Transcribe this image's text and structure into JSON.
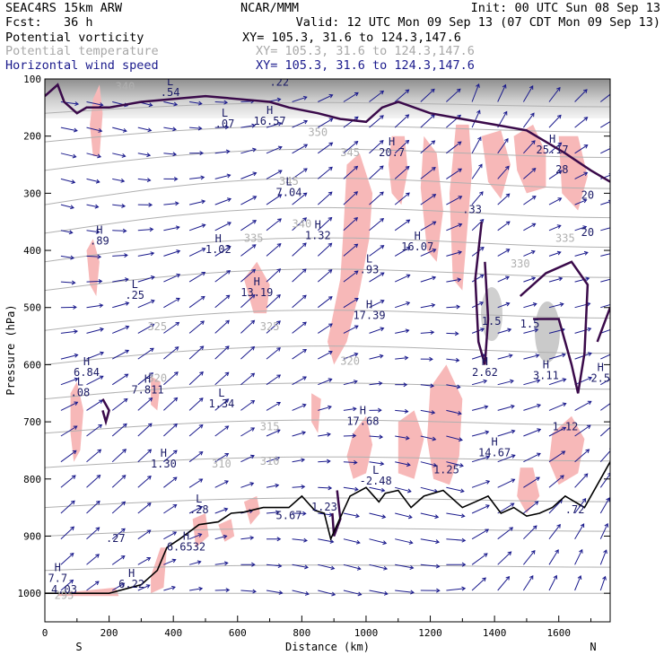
{
  "header": {
    "line1_left": "SEAC4RS 15km ARW",
    "line1_center": "NCAR/MMM",
    "line1_right": "Init: 00 UTC Sun 08 Sep 13",
    "line2_left": "Fcst:   36 h",
    "line2_right": "Valid: 12 UTC Mon 09 Sep 13 (07 CDT Mon 09 Sep 13)",
    "fields": [
      {
        "name": "Potential vorticity",
        "xy": "XY= 105.3, 31.6 to 124.3,147.6",
        "color": "#000000"
      },
      {
        "name": "Potential temperature",
        "xy": "XY= 105.3, 31.6 to 124.3,147.6",
        "color": "#a8a8a8"
      },
      {
        "name": "Horizontal wind speed",
        "xy": "XY= 105.3, 31.6 to 124.3,147.6",
        "color": "#1a1a8c"
      }
    ]
  },
  "chart_data": {
    "type": "cross-section",
    "xlabel": "Distance (km)",
    "ylabel": "Pressure (hPa)",
    "xlim": [
      0,
      1760
    ],
    "ylim": [
      1050,
      100
    ],
    "x_ticks": [
      0,
      200,
      400,
      600,
      800,
      1000,
      1200,
      1400,
      1600
    ],
    "y_ticks": [
      100,
      200,
      300,
      400,
      500,
      600,
      700,
      800,
      900,
      1000
    ],
    "endpoint_left": "S",
    "endpoint_right": "N",
    "colors": {
      "pv_shade": "#f7b8b8",
      "terrain": "#000000",
      "theta": "#b0b0b0",
      "wind": "#1a1a8c",
      "pv_contour": "#3a0a4a"
    },
    "terrain": [
      [
        0,
        1000
      ],
      [
        100,
        1000
      ],
      [
        200,
        1000
      ],
      [
        300,
        985
      ],
      [
        350,
        960
      ],
      [
        380,
        920
      ],
      [
        420,
        905
      ],
      [
        480,
        880
      ],
      [
        540,
        875
      ],
      [
        580,
        860
      ],
      [
        620,
        858
      ],
      [
        680,
        850
      ],
      [
        720,
        850
      ],
      [
        760,
        850
      ],
      [
        800,
        830
      ],
      [
        840,
        855
      ],
      [
        870,
        860
      ],
      [
        890,
        905
      ],
      [
        910,
        880
      ],
      [
        950,
        830
      ],
      [
        1000,
        815
      ],
      [
        1040,
        840
      ],
      [
        1060,
        825
      ],
      [
        1100,
        820
      ],
      [
        1140,
        850
      ],
      [
        1180,
        830
      ],
      [
        1240,
        820
      ],
      [
        1300,
        850
      ],
      [
        1340,
        840
      ],
      [
        1380,
        830
      ],
      [
        1420,
        860
      ],
      [
        1460,
        850
      ],
      [
        1500,
        865
      ],
      [
        1540,
        860
      ],
      [
        1580,
        850
      ],
      [
        1620,
        830
      ],
      [
        1680,
        850
      ],
      [
        1730,
        800
      ],
      [
        1760,
        770
      ]
    ],
    "theta_labels": [
      {
        "x": 250,
        "p": 120,
        "v": "340"
      },
      {
        "x": 850,
        "p": 200,
        "v": "350"
      },
      {
        "x": 950,
        "p": 235,
        "v": "345"
      },
      {
        "x": 760,
        "p": 285,
        "v": "345"
      },
      {
        "x": 800,
        "p": 360,
        "v": "340"
      },
      {
        "x": 650,
        "p": 385,
        "v": "335"
      },
      {
        "x": 1620,
        "p": 385,
        "v": "335"
      },
      {
        "x": 1480,
        "p": 430,
        "v": "330"
      },
      {
        "x": 350,
        "p": 540,
        "v": "325"
      },
      {
        "x": 700,
        "p": 540,
        "v": "325"
      },
      {
        "x": 950,
        "p": 600,
        "v": "320"
      },
      {
        "x": 350,
        "p": 630,
        "v": "320"
      },
      {
        "x": 700,
        "p": 715,
        "v": "315"
      },
      {
        "x": 550,
        "p": 780,
        "v": "310"
      },
      {
        "x": 700,
        "p": 775,
        "v": "310"
      },
      {
        "x": 60,
        "p": 1010,
        "v": "295"
      }
    ],
    "pv_extrema": [
      {
        "t": "L",
        "x": 390,
        "p": 130,
        "v": ".54"
      },
      {
        "t": "",
        "x": 730,
        "p": 112,
        "v": ".22"
      },
      {
        "t": "L",
        "x": 560,
        "p": 185,
        "v": ".07"
      },
      {
        "t": "H",
        "x": 700,
        "p": 180,
        "v": "16.57"
      },
      {
        "t": "H",
        "x": 1080,
        "p": 235,
        "v": "20.7"
      },
      {
        "t": "H",
        "x": 1580,
        "p": 230,
        "v": "25.17"
      },
      {
        "t": "",
        "x": 1610,
        "p": 265,
        "v": "28"
      },
      {
        "t": "",
        "x": 1690,
        "p": 310,
        "v": "20"
      },
      {
        "t": "",
        "x": 1690,
        "p": 375,
        "v": "20"
      },
      {
        "t": "L",
        "x": 760,
        "p": 305,
        "v": "7.04"
      },
      {
        "t": "H",
        "x": 850,
        "p": 380,
        "v": "1.32"
      },
      {
        "t": "H",
        "x": 170,
        "p": 390,
        "v": ".89"
      },
      {
        "t": "H",
        "x": 540,
        "p": 405,
        "v": "1.02"
      },
      {
        "t": "L",
        "x": 1010,
        "p": 440,
        "v": ".93"
      },
      {
        "t": "H",
        "x": 1160,
        "p": 400,
        "v": "16.07"
      },
      {
        "t": "",
        "x": 1330,
        "p": 335,
        "v": ".33"
      },
      {
        "t": "H",
        "x": 660,
        "p": 480,
        "v": "13.19"
      },
      {
        "t": "L",
        "x": 280,
        "p": 485,
        "v": ".25"
      },
      {
        "t": "H",
        "x": 1010,
        "p": 520,
        "v": "17.39"
      },
      {
        "t": "",
        "x": 1390,
        "p": 530,
        "v": "1.5"
      },
      {
        "t": "",
        "x": 1510,
        "p": 535,
        "v": "1.5"
      },
      {
        "t": "H",
        "x": 130,
        "p": 620,
        "v": "6.84"
      },
      {
        "t": "H",
        "x": 1370,
        "p": 620,
        "v": "2.62"
      },
      {
        "t": "H",
        "x": 1560,
        "p": 625,
        "v": "3.11"
      },
      {
        "t": "H",
        "x": 1730,
        "p": 630,
        "v": "2.5"
      },
      {
        "t": "L",
        "x": 110,
        "p": 655,
        "v": ".08"
      },
      {
        "t": "H",
        "x": 320,
        "p": 650,
        "v": "7.811"
      },
      {
        "t": "L",
        "x": 550,
        "p": 675,
        "v": "1.34"
      },
      {
        "t": "H",
        "x": 990,
        "p": 705,
        "v": "17.68"
      },
      {
        "t": "",
        "x": 1620,
        "p": 715,
        "v": "1.12"
      },
      {
        "t": "H",
        "x": 1400,
        "p": 760,
        "v": "14.67"
      },
      {
        "t": "H",
        "x": 370,
        "p": 780,
        "v": "1.30"
      },
      {
        "t": "",
        "x": 1250,
        "p": 790,
        "v": "1.25"
      },
      {
        "t": "L",
        "x": 1030,
        "p": 810,
        "v": "-2.48"
      },
      {
        "t": "",
        "x": 1650,
        "p": 860,
        "v": ".72"
      },
      {
        "t": "L",
        "x": 480,
        "p": 860,
        "v": ".28"
      },
      {
        "t": "",
        "x": 870,
        "p": 855,
        "v": "1.23"
      },
      {
        "t": "",
        "x": 760,
        "p": 870,
        "v": "5.67"
      },
      {
        "t": "",
        "x": 220,
        "p": 910,
        "v": ".27"
      },
      {
        "t": "H",
        "x": 440,
        "p": 925,
        "v": "6.6532"
      },
      {
        "t": "H",
        "x": 40,
        "p": 980,
        "v": "7.7"
      },
      {
        "t": "H",
        "x": 270,
        "p": 990,
        "v": "6.22"
      },
      {
        "t": "",
        "x": 60,
        "p": 1000,
        "v": "4.03"
      }
    ],
    "pv_shading": [
      [
        [
          150,
          135
        ],
        [
          170,
          110
        ],
        [
          180,
          160
        ],
        [
          170,
          235
        ],
        [
          150,
          235
        ],
        [
          140,
          180
        ]
      ],
      [
        [
          130,
          400
        ],
        [
          150,
          380
        ],
        [
          170,
          420
        ],
        [
          160,
          480
        ],
        [
          140,
          460
        ]
      ],
      [
        [
          620,
          450
        ],
        [
          660,
          420
        ],
        [
          700,
          460
        ],
        [
          690,
          510
        ],
        [
          650,
          510
        ]
      ],
      [
        [
          940,
          250
        ],
        [
          980,
          230
        ],
        [
          1020,
          300
        ],
        [
          1010,
          380
        ],
        [
          980,
          470
        ],
        [
          940,
          560
        ],
        [
          900,
          600
        ],
        [
          880,
          560
        ],
        [
          920,
          450
        ],
        [
          930,
          360
        ]
      ],
      [
        [
          1080,
          200
        ],
        [
          1120,
          200
        ],
        [
          1130,
          260
        ],
        [
          1110,
          320
        ],
        [
          1080,
          300
        ],
        [
          1070,
          250
        ]
      ],
      [
        [
          1180,
          200
        ],
        [
          1220,
          230
        ],
        [
          1240,
          330
        ],
        [
          1220,
          420
        ],
        [
          1190,
          400
        ],
        [
          1170,
          290
        ]
      ],
      [
        [
          1280,
          180
        ],
        [
          1320,
          180
        ],
        [
          1330,
          260
        ],
        [
          1300,
          470
        ],
        [
          1270,
          450
        ],
        [
          1260,
          300
        ]
      ],
      [
        [
          1360,
          200
        ],
        [
          1420,
          190
        ],
        [
          1450,
          250
        ],
        [
          1420,
          310
        ],
        [
          1380,
          280
        ]
      ],
      [
        [
          1460,
          200
        ],
        [
          1520,
          180
        ],
        [
          1560,
          230
        ],
        [
          1560,
          290
        ],
        [
          1500,
          300
        ],
        [
          1470,
          260
        ]
      ],
      [
        [
          1600,
          200
        ],
        [
          1660,
          200
        ],
        [
          1690,
          270
        ],
        [
          1660,
          330
        ],
        [
          1610,
          300
        ]
      ],
      [
        [
          80,
          650
        ],
        [
          100,
          630
        ],
        [
          120,
          680
        ],
        [
          110,
          750
        ],
        [
          90,
          770
        ],
        [
          80,
          720
        ]
      ],
      [
        [
          330,
          620
        ],
        [
          360,
          630
        ],
        [
          350,
          680
        ],
        [
          330,
          670
        ]
      ],
      [
        [
          830,
          650
        ],
        [
          860,
          660
        ],
        [
          850,
          720
        ],
        [
          830,
          700
        ]
      ],
      [
        [
          960,
          720
        ],
        [
          1000,
          690
        ],
        [
          1020,
          740
        ],
        [
          1000,
          790
        ],
        [
          960,
          800
        ],
        [
          940,
          760
        ]
      ],
      [
        [
          1100,
          700
        ],
        [
          1150,
          680
        ],
        [
          1180,
          730
        ],
        [
          1150,
          800
        ],
        [
          1100,
          790
        ]
      ],
      [
        [
          1200,
          640
        ],
        [
          1250,
          600
        ],
        [
          1300,
          660
        ],
        [
          1290,
          760
        ],
        [
          1260,
          810
        ],
        [
          1210,
          800
        ],
        [
          1190,
          730
        ]
      ],
      [
        [
          1580,
          720
        ],
        [
          1640,
          690
        ],
        [
          1680,
          730
        ],
        [
          1660,
          790
        ],
        [
          1600,
          810
        ],
        [
          1570,
          770
        ]
      ],
      [
        [
          1480,
          780
        ],
        [
          1520,
          780
        ],
        [
          1540,
          830
        ],
        [
          1500,
          860
        ],
        [
          1470,
          830
        ]
      ],
      [
        [
          330,
          970
        ],
        [
          360,
          920
        ],
        [
          380,
          920
        ],
        [
          370,
          990
        ],
        [
          330,
          1000
        ]
      ],
      [
        [
          40,
          1000
        ],
        [
          220,
          990
        ],
        [
          230,
          1005
        ],
        [
          40,
          1005
        ]
      ],
      [
        [
          460,
          870
        ],
        [
          500,
          860
        ],
        [
          510,
          900
        ],
        [
          470,
          920
        ]
      ],
      [
        [
          540,
          880
        ],
        [
          580,
          870
        ],
        [
          590,
          900
        ],
        [
          560,
          910
        ]
      ],
      [
        [
          620,
          840
        ],
        [
          660,
          830
        ],
        [
          670,
          860
        ],
        [
          640,
          880
        ]
      ]
    ],
    "pv_contours": [
      [
        [
          0,
          130
        ],
        [
          40,
          110
        ],
        [
          60,
          140
        ],
        [
          100,
          160
        ],
        [
          130,
          150
        ],
        [
          200,
          150
        ],
        [
          300,
          140
        ],
        [
          500,
          130
        ],
        [
          700,
          140
        ],
        [
          760,
          150
        ],
        [
          850,
          160
        ],
        [
          920,
          170
        ],
        [
          1000,
          175
        ],
        [
          1050,
          150
        ],
        [
          1100,
          140
        ],
        [
          1200,
          160
        ],
        [
          1300,
          170
        ],
        [
          1400,
          180
        ],
        [
          1500,
          190
        ],
        [
          1560,
          210
        ],
        [
          1620,
          230
        ],
        [
          1700,
          260
        ],
        [
          1760,
          280
        ]
      ],
      [
        [
          1360,
          350
        ],
        [
          1340,
          450
        ],
        [
          1350,
          560
        ],
        [
          1370,
          600
        ],
        [
          1380,
          520
        ],
        [
          1370,
          420
        ]
      ],
      [
        [
          1480,
          480
        ],
        [
          1560,
          440
        ],
        [
          1640,
          420
        ],
        [
          1690,
          460
        ],
        [
          1680,
          580
        ],
        [
          1660,
          650
        ],
        [
          1640,
          600
        ],
        [
          1600,
          520
        ],
        [
          1520,
          520
        ]
      ],
      [
        [
          1720,
          560
        ],
        [
          1760,
          500
        ]
      ],
      [
        [
          180,
          660
        ],
        [
          200,
          680
        ],
        [
          190,
          700
        ],
        [
          180,
          680
        ]
      ],
      [
        [
          910,
          820
        ],
        [
          920,
          870
        ],
        [
          900,
          900
        ],
        [
          895,
          860
        ]
      ]
    ]
  }
}
